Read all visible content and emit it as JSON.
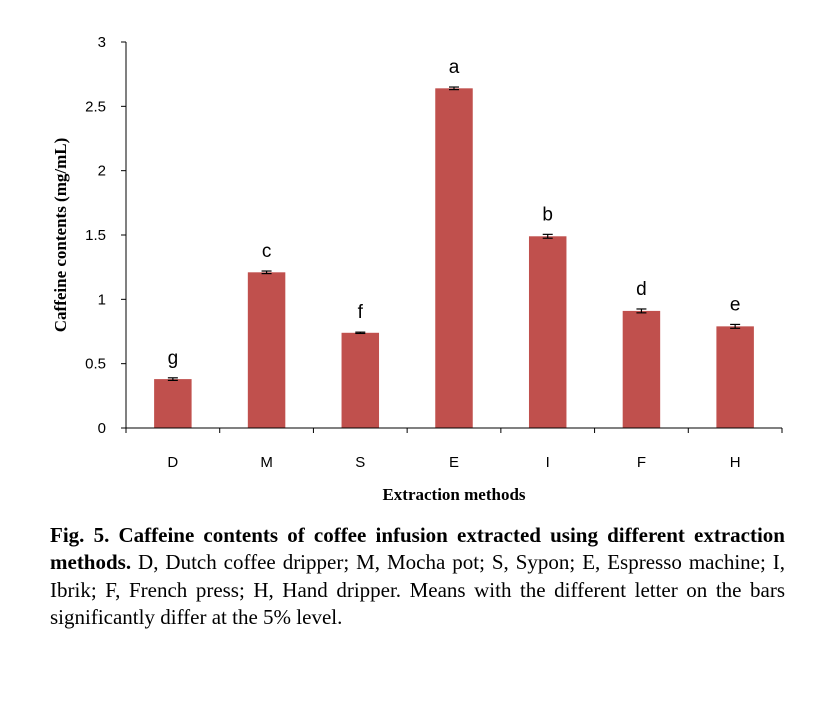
{
  "chart_data": {
    "type": "bar",
    "categories": [
      "D",
      "M",
      "S",
      "E",
      "I",
      "F",
      "H"
    ],
    "values": [
      0.38,
      1.21,
      0.74,
      2.64,
      1.49,
      0.91,
      0.79
    ],
    "errors": [
      0.01,
      0.01,
      0.005,
      0.01,
      0.015,
      0.015,
      0.015
    ],
    "significance_letters": [
      "g",
      "c",
      "f",
      "a",
      "b",
      "d",
      "e"
    ],
    "xlabel": "Extraction methods",
    "ylabel": "Caffeine contents (mg/mL)",
    "ylim": [
      0,
      3
    ],
    "yticks": [
      0,
      0.5,
      1,
      1.5,
      2,
      2.5,
      3
    ],
    "ytick_labels": [
      "0",
      "0.5",
      "1",
      "1.5",
      "2",
      "2.5",
      "3"
    ],
    "bar_color": "#c0504d",
    "grid": false,
    "legend": "none"
  },
  "caption": {
    "bold": "Fig. 5. Caffeine contents of coffee infusion extracted using different extraction methods.",
    "text": " D, Dutch coffee dripper; M, Mocha pot; S, Sypon; E, Espresso machine; I, Ibrik; F, French press; H, Hand dripper. Means with the different letter on the bars significantly differ at the 5% level."
  }
}
